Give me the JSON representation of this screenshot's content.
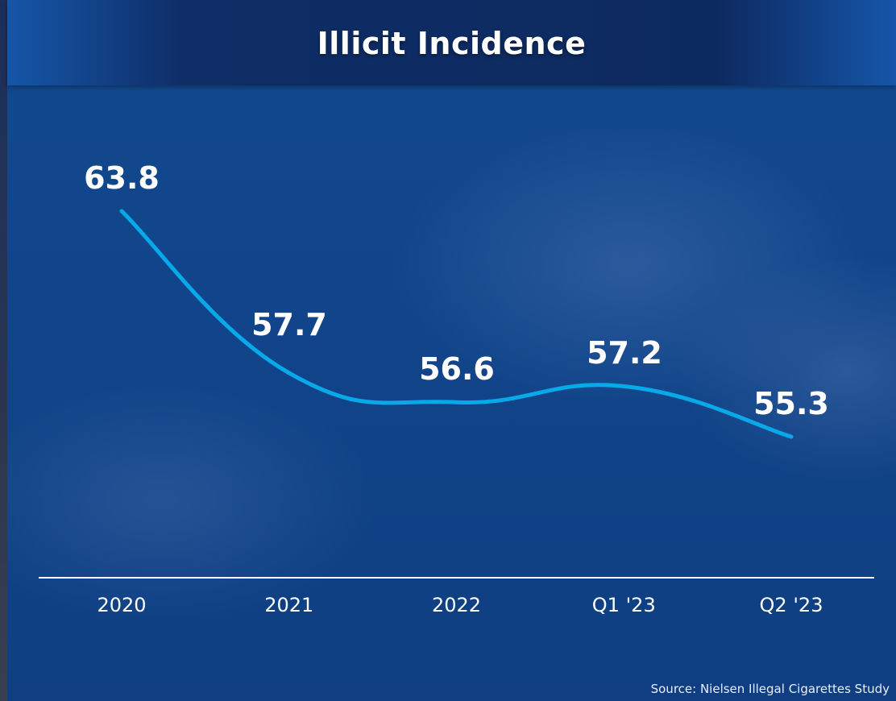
{
  "title": "Illicit Incidence",
  "source": "Source: Nielsen Illegal Cigarettes Study",
  "colors": {
    "line": "#08a9e8",
    "text": "#ffffff",
    "axis": "#ffffff",
    "title_bar": "#0f2d66"
  },
  "chart_data": {
    "type": "line",
    "title": "Illicit Incidence",
    "categories": [
      "2020",
      "2021",
      "2022",
      "Q1 '23",
      "Q2 '23"
    ],
    "values": [
      63.8,
      57.7,
      56.6,
      57.2,
      55.3
    ],
    "data_labels": [
      "63.8",
      "57.7",
      "56.6",
      "57.2",
      "55.3"
    ],
    "xlabel": "",
    "ylabel": "",
    "y_axis_visible": false,
    "grid": false,
    "legend": "none",
    "smooth": true
  }
}
